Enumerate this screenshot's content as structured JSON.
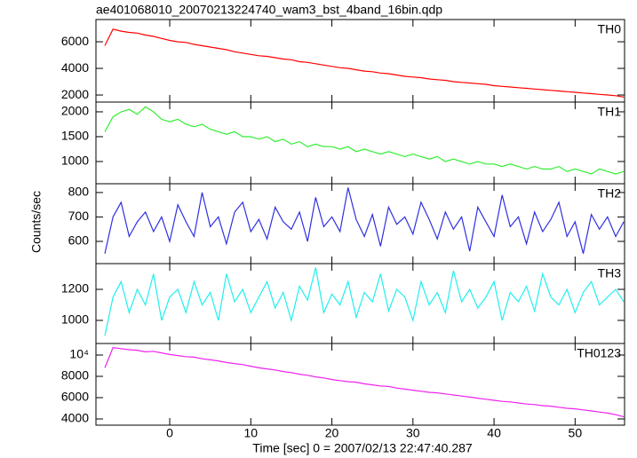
{
  "title": "ae401068010_20070213224740_wam3_bst_4band_16bin.qdp",
  "xlabel": "Time [sec] 0 = 2007/02/13 22:47:40.287",
  "ylabel": "Counts/sec",
  "xlim": [
    -9.1,
    56.1
  ],
  "xticks": [
    0,
    10,
    20,
    30,
    40,
    50
  ],
  "x": [
    -8,
    -7,
    -6,
    -5,
    -4,
    -3,
    -2,
    -1,
    0,
    1,
    2,
    3,
    4,
    5,
    6,
    7,
    8,
    9,
    10,
    11,
    12,
    13,
    14,
    15,
    16,
    17,
    18,
    19,
    20,
    21,
    22,
    23,
    24,
    25,
    26,
    27,
    28,
    29,
    30,
    31,
    32,
    33,
    34,
    35,
    36,
    37,
    38,
    39,
    40,
    41,
    42,
    43,
    44,
    45,
    46,
    47,
    48,
    49,
    50,
    51,
    52,
    53,
    54,
    55,
    56
  ],
  "chart_data": [
    {
      "type": "line",
      "ylim": [
        1470,
        7670
      ],
      "yticks": [
        2000,
        4000,
        6000
      ],
      "series": [
        {
          "name": "TH0",
          "color": "#ff0000",
          "values": [
            5700,
            6950,
            6800,
            6700,
            6650,
            6500,
            6400,
            6250,
            6100,
            6000,
            5950,
            5800,
            5700,
            5600,
            5500,
            5400,
            5250,
            5150,
            5050,
            4950,
            4900,
            4800,
            4700,
            4650,
            4500,
            4450,
            4350,
            4250,
            4150,
            4050,
            4000,
            3900,
            3800,
            3750,
            3650,
            3600,
            3500,
            3400,
            3350,
            3300,
            3200,
            3150,
            3100,
            3000,
            2950,
            2900,
            2850,
            2800,
            2700,
            2650,
            2600,
            2550,
            2500,
            2450,
            2400,
            2350,
            2300,
            2250,
            2200,
            2150,
            2100,
            2050,
            2000,
            1950,
            1850
          ]
        }
      ]
    },
    {
      "type": "line",
      "ylim": [
        553,
        2196
      ],
      "yticks": [
        1000,
        1500,
        2000
      ],
      "series": [
        {
          "name": "TH1",
          "color": "#33ee33",
          "values": [
            1600,
            1900,
            2000,
            2050,
            1950,
            2100,
            2000,
            1850,
            1800,
            1850,
            1750,
            1700,
            1750,
            1650,
            1600,
            1550,
            1600,
            1500,
            1500,
            1450,
            1500,
            1400,
            1450,
            1350,
            1400,
            1300,
            1350,
            1300,
            1300,
            1250,
            1300,
            1200,
            1250,
            1200,
            1150,
            1200,
            1150,
            1100,
            1150,
            1100,
            1050,
            1100,
            1000,
            1050,
            1000,
            950,
            1000,
            950,
            950,
            900,
            950,
            900,
            850,
            900,
            850,
            850,
            900,
            800,
            850,
            800,
            750,
            850,
            800,
            750,
            800
          ]
        }
      ]
    },
    {
      "type": "line",
      "ylim": [
        509,
        836
      ],
      "yticks": [
        600,
        700,
        800
      ],
      "series": [
        {
          "name": "TH2",
          "color": "#3030e0",
          "values": [
            550,
            700,
            760,
            620,
            680,
            720,
            640,
            700,
            600,
            750,
            680,
            620,
            800,
            660,
            700,
            590,
            720,
            760,
            640,
            690,
            610,
            740,
            680,
            650,
            720,
            600,
            780,
            660,
            700,
            640,
            820,
            690,
            620,
            710,
            580,
            740,
            670,
            700,
            630,
            760,
            690,
            610,
            720,
            650,
            700,
            560,
            740,
            680,
            620,
            790,
            660,
            700,
            590,
            720,
            640,
            690,
            760,
            620,
            680,
            550,
            710,
            650,
            700,
            620,
            680
          ]
        }
      ]
    },
    {
      "type": "line",
      "ylim": [
        851,
        1366
      ],
      "yticks": [
        1000,
        1200
      ],
      "series": [
        {
          "name": "TH3",
          "color": "#22eeee",
          "values": [
            900,
            1150,
            1250,
            1050,
            1200,
            1100,
            1300,
            1000,
            1150,
            1200,
            1050,
            1250,
            1100,
            1180,
            1000,
            1300,
            1120,
            1200,
            1050,
            1150,
            1250,
            1080,
            1180,
            1000,
            1220,
            1130,
            1340,
            1050,
            1170,
            1100,
            1250,
            1020,
            1180,
            1120,
            1300,
            1060,
            1200,
            1150,
            1000,
            1250,
            1100,
            1180,
            1050,
            1320,
            1120,
            1200,
            1080,
            1150,
            1250,
            1000,
            1180,
            1120,
            1220,
            1060,
            1300,
            1150,
            1100,
            1200,
            1050,
            1180,
            1250,
            1100,
            1150,
            1200,
            1120
          ]
        }
      ]
    },
    {
      "type": "line",
      "ylim": [
        3417,
        11083
      ],
      "yticks": [
        4000,
        6000,
        8000,
        {
          "value": 10000,
          "label": "10⁴"
        }
      ],
      "series": [
        {
          "name": "TH0123",
          "color": "#ee22ee",
          "values": [
            8800,
            10700,
            10600,
            10500,
            10450,
            10300,
            10350,
            10200,
            10050,
            9950,
            9850,
            9800,
            9650,
            9550,
            9450,
            9300,
            9200,
            9100,
            8950,
            8800,
            8700,
            8600,
            8450,
            8350,
            8200,
            8100,
            7950,
            7850,
            7700,
            7600,
            7500,
            7450,
            7300,
            7200,
            7100,
            7050,
            6900,
            6800,
            6700,
            6600,
            6500,
            6450,
            6350,
            6250,
            6150,
            6050,
            5950,
            5850,
            5750,
            5650,
            5600,
            5500,
            5400,
            5350,
            5250,
            5200,
            5100,
            5000,
            4950,
            4850,
            4750,
            4650,
            4550,
            4400,
            4200
          ]
        }
      ]
    }
  ]
}
